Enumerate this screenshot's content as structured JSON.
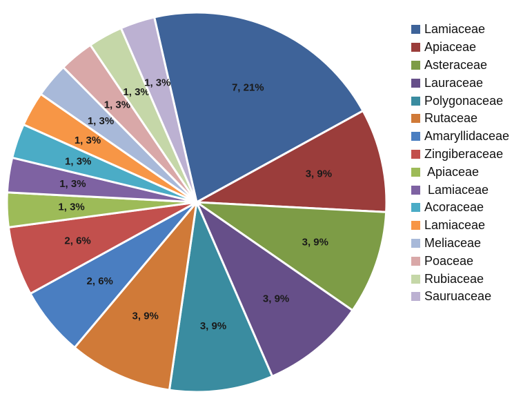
{
  "chart_data": {
    "type": "pie",
    "start_angle_deg": -102.9,
    "slices": [
      {
        "name": "Lamiaceae",
        "value": 7,
        "label": "7, 21%",
        "color": "#3E6399"
      },
      {
        "name": "Apiaceae",
        "value": 3,
        "label": "3, 9%",
        "color": "#9B3D3B"
      },
      {
        "name": "Asteraceae",
        "value": 3,
        "label": "3, 9%",
        "color": "#7D9C46"
      },
      {
        "name": "Lauraceae",
        "value": 3,
        "label": "3, 9%",
        "color": "#664F89"
      },
      {
        "name": "Polygonaceae",
        "value": 3,
        "label": "3, 9%",
        "color": "#3A8CA0"
      },
      {
        "name": "Rutaceae",
        "value": 3,
        "label": "3, 9%",
        "color": "#D07A38"
      },
      {
        "name": "Amaryllidaceae",
        "value": 2,
        "label": "2, 6%",
        "color": "#4A7EC1"
      },
      {
        "name": "Zingiberaceae",
        "value": 2,
        "label": "2, 6%",
        "color": "#C2504D"
      },
      {
        "name": " Apiaceae",
        "value": 1,
        "label": "1, 3%",
        "color": "#9DBB58"
      },
      {
        "name": " Lamiaceae",
        "value": 1,
        "label": "1, 3%",
        "color": "#7E62A2"
      },
      {
        "name": "Acoraceae",
        "value": 1,
        "label": "1, 3%",
        "color": "#4BACC6"
      },
      {
        "name": "Lamiaceae",
        "value": 1,
        "label": "1, 3%",
        "color": "#F79646"
      },
      {
        "name": "Meliaceae",
        "value": 1,
        "label": "1, 3%",
        "color": "#A8B9D9"
      },
      {
        "name": "Poaceae",
        "value": 1,
        "label": "1, 3%",
        "color": "#D9A8A8"
      },
      {
        "name": "Rubiaceae",
        "value": 1,
        "label": "1, 3%",
        "color": "#C5D7A8"
      },
      {
        "name": "Sauruaceae",
        "value": 1,
        "label": "1, 3%",
        "color": "#BCB1D2"
      }
    ]
  }
}
